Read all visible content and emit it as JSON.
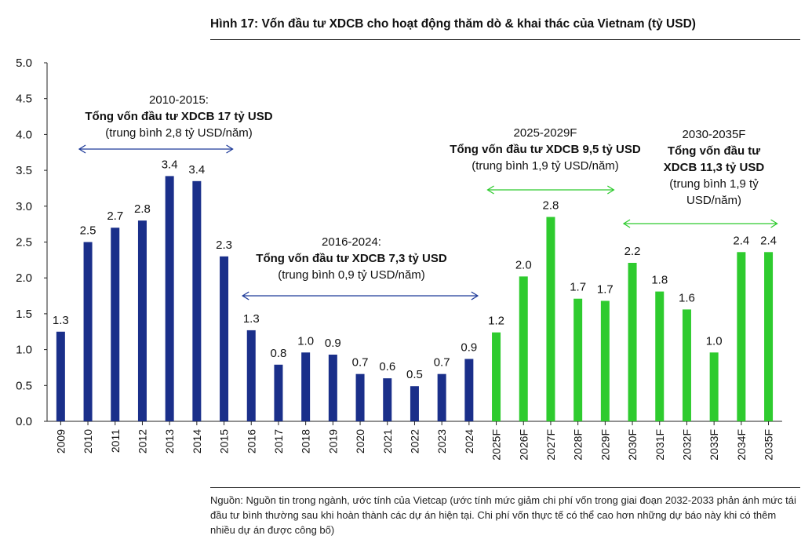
{
  "title": "Hình 17: Vốn đầu tư XDCB cho hoạt động thăm dò & khai thác của Vietnam (tỷ USD)",
  "source": "Nguồn: Nguồn tin trong ngành, ước tính của Vietcap (ước tính mức giảm chi phí vốn trong giai đoạn 2032-2033 phản ánh mức tái đầu tư bình thường sau khi hoàn thành các dự án hiện tại. Chi phí vốn thực tế có thể cao hơn những dự báo này khi có thêm nhiều dự án được công bố)",
  "colors": {
    "historical": "#1a2f8a",
    "forecast": "#2ecb2e",
    "arrow_historical": "#1f3b99",
    "arrow_forecast": "#2ecb2e"
  },
  "chart_data": {
    "type": "bar",
    "categories": [
      "2009",
      "2010",
      "2011",
      "2012",
      "2013",
      "2014",
      "2015",
      "2016",
      "2017",
      "2018",
      "2019",
      "2020",
      "2021",
      "2022",
      "2023",
      "2024",
      "2025F",
      "2026F",
      "2027F",
      "2028F",
      "2029F",
      "2030F",
      "2031F",
      "2032F",
      "2033F",
      "2034F",
      "2035F"
    ],
    "values": [
      1.25,
      2.5,
      2.7,
      2.8,
      3.42,
      3.35,
      2.3,
      1.27,
      0.79,
      0.96,
      0.93,
      0.66,
      0.6,
      0.49,
      0.66,
      0.87,
      1.24,
      2.02,
      2.85,
      1.71,
      1.68,
      2.21,
      1.81,
      1.56,
      0.96,
      2.36,
      2.36
    ],
    "data_labels": [
      "1.3",
      "2.5",
      "2.7",
      "2.8",
      "3.4",
      "3.4",
      "2.3",
      "1.3",
      "0.8",
      "1.0",
      "0.9",
      "0.7",
      "0.6",
      "0.5",
      "0.7",
      "0.9",
      "1.2",
      "2.0",
      "2.8",
      "1.7",
      "1.7",
      "2.2",
      "1.8",
      "1.6",
      "1.0",
      "2.4",
      "2.4"
    ],
    "forecast_start_index": 16,
    "ylim": [
      0,
      5
    ],
    "yticks": [
      "0.0",
      "0.5",
      "1.0",
      "1.5",
      "2.0",
      "2.5",
      "3.0",
      "3.5",
      "4.0",
      "4.5",
      "5.0"
    ],
    "grid": false,
    "annotations": [
      {
        "from": "2010",
        "to": "2015",
        "lines": [
          "2010-2015:",
          "Tổng vốn đầu tư XDCB 17 tỷ USD",
          "(trung bình 2,8 tỷ USD/năm)"
        ]
      },
      {
        "from": "2016",
        "to": "2024",
        "lines": [
          "2016-2024:",
          "Tổng vốn đầu tư XDCB 7,3 tỷ USD",
          "(trung bình 0,9 tỷ USD/năm)"
        ]
      },
      {
        "from": "2025F",
        "to": "2029F",
        "lines": [
          "2025-2029F",
          "Tổng vốn đầu tư XDCB 9,5 tỷ USD",
          "(trung bình 1,9 tỷ USD/năm)"
        ]
      },
      {
        "from": "2030F",
        "to": "2035F",
        "lines": [
          "2030-2035F",
          "Tổng vốn đầu tư",
          "XDCB 11,3 tỷ USD",
          "(trung bình 1,9 tỷ",
          "USD/năm)"
        ]
      }
    ]
  }
}
